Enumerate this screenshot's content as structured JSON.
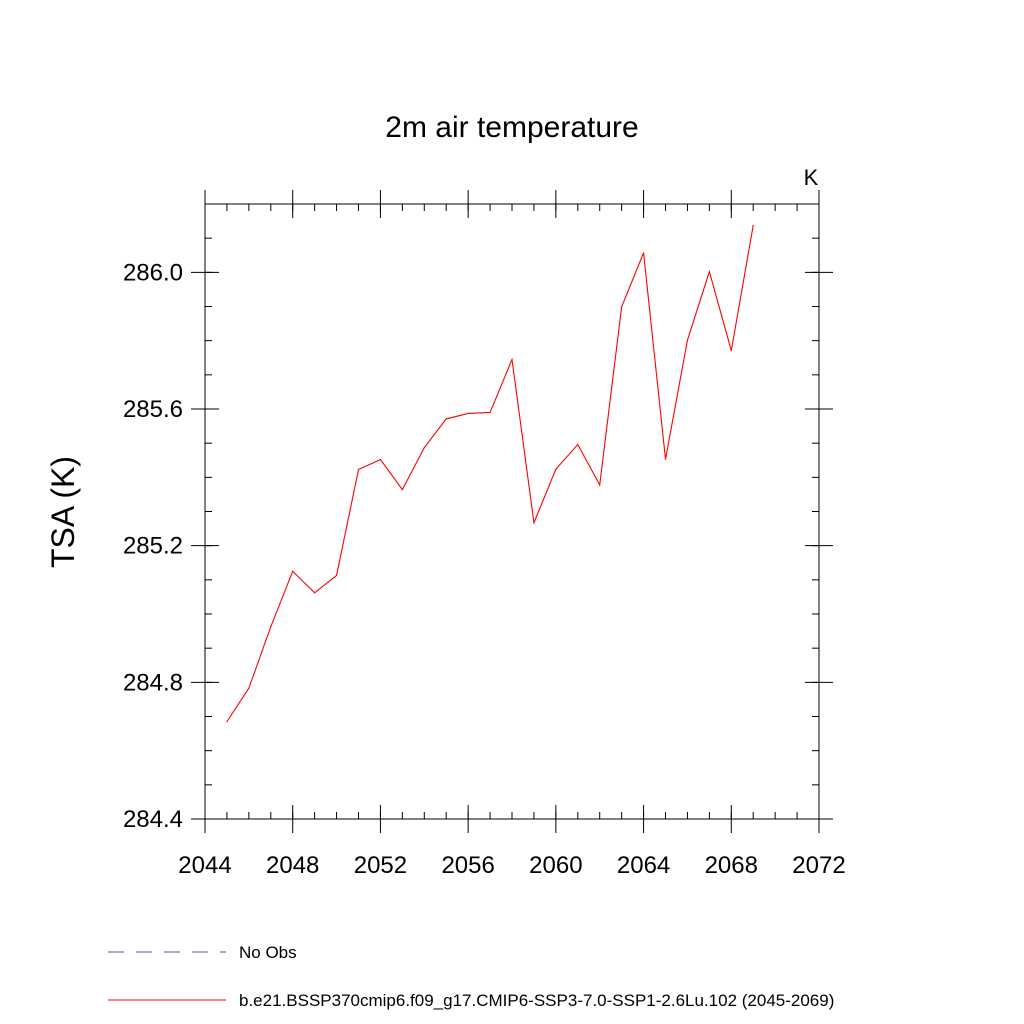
{
  "chart_data": {
    "type": "line",
    "title": "2m air temperature",
    "units": "K",
    "xlabel": "",
    "ylabel": "TSA  (K)",
    "xlim": [
      2044,
      2072
    ],
    "ylim": [
      284.4,
      286.2
    ],
    "x_ticks": [
      2044,
      2048,
      2052,
      2056,
      2060,
      2064,
      2068,
      2072
    ],
    "x_tick_labels": [
      "2044",
      "2048",
      "2052",
      "2056",
      "2060",
      "2064",
      "2068",
      "2072"
    ],
    "y_ticks": [
      284.4,
      284.8,
      285.2,
      285.6,
      286.0
    ],
    "y_tick_labels": [
      "284.4",
      "284.8",
      "285.2",
      "285.6",
      "286.0"
    ],
    "y_minor_step": 0.1,
    "x_minor_step": 1,
    "grid": false,
    "series": [
      {
        "name": "b.e21.BSSP370cmip6.f09_g17.CMIP6-SSP3-7.0-SSP1-2.6Lu.102 (2045-2069)",
        "color": "#ff0000",
        "style": "solid",
        "x": [
          2045,
          2046,
          2047,
          2048,
          2049,
          2050,
          2051,
          2052,
          2053,
          2054,
          2055,
          2056,
          2057,
          2058,
          2059,
          2060,
          2061,
          2062,
          2063,
          2064,
          2065,
          2066,
          2067,
          2068,
          2069
        ],
        "y": [
          284.685,
          284.783,
          284.963,
          285.125,
          285.062,
          285.113,
          285.423,
          285.452,
          285.364,
          285.487,
          285.571,
          285.587,
          285.59,
          285.745,
          285.267,
          285.424,
          285.496,
          285.378,
          285.899,
          286.057,
          285.453,
          285.801,
          286.002,
          285.771,
          286.137
        ]
      }
    ],
    "legend": {
      "placement": "bottom",
      "entries": [
        {
          "label": "No Obs",
          "color": "#5b4fb4",
          "style": "dashed"
        },
        {
          "label": "b.e21.BSSP370cmip6.f09_g17.CMIP6-SSP3-7.0-SSP1-2.6Lu.102 (2045-2069)",
          "color": "#ff0000",
          "style": "solid"
        }
      ]
    }
  }
}
